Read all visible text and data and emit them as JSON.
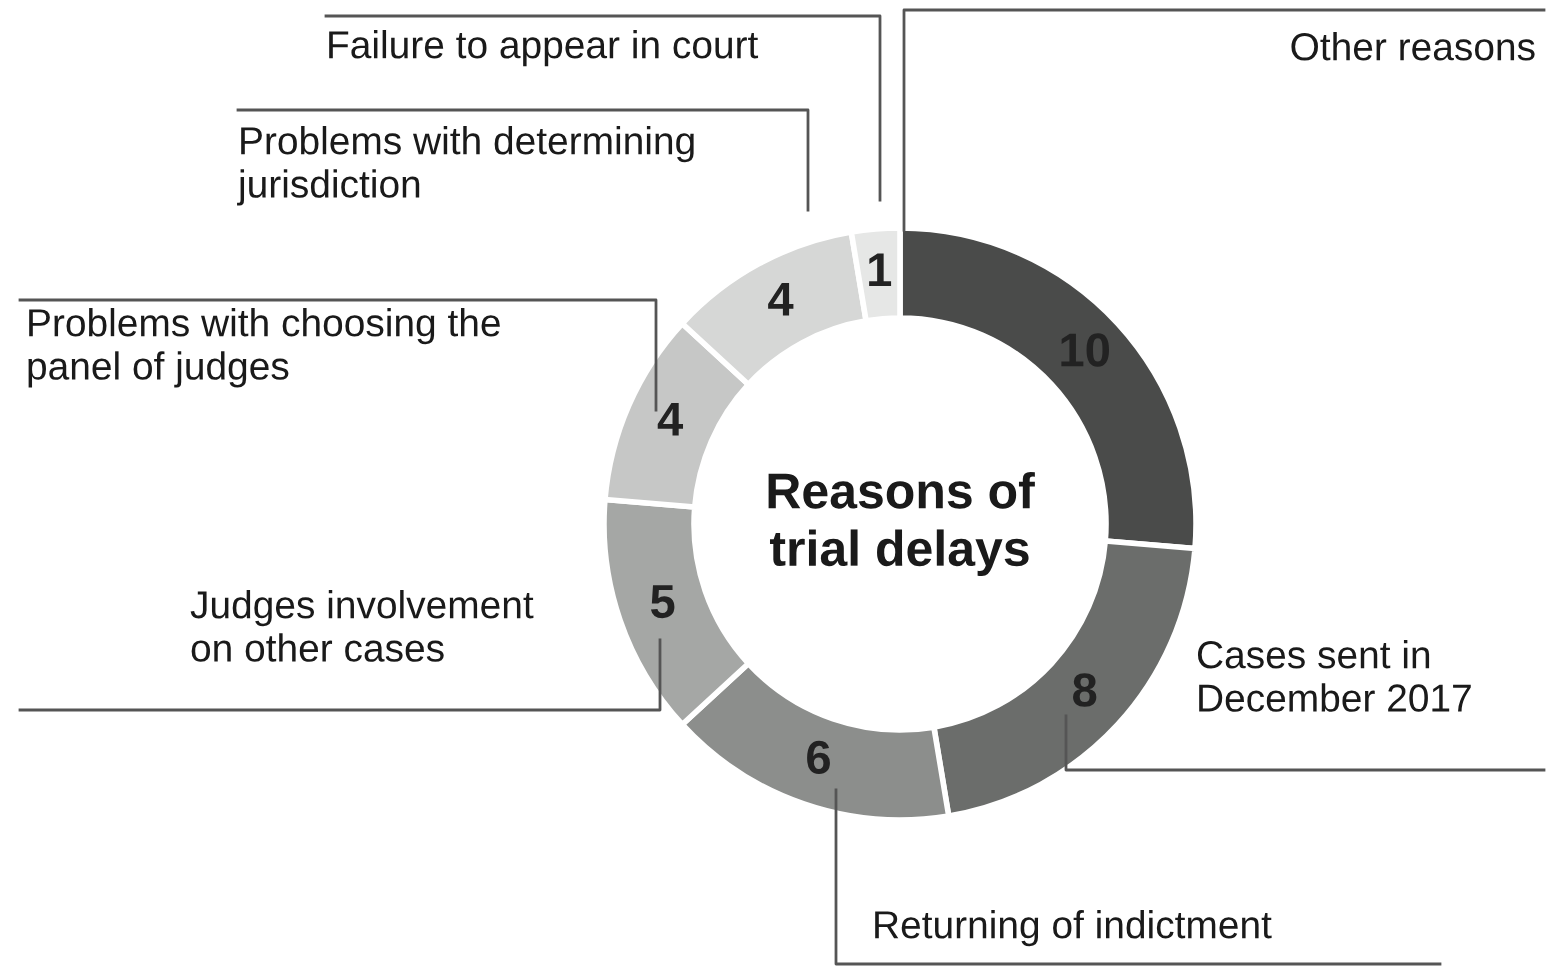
{
  "chart_data": {
    "type": "donut",
    "title": "Reasons of\ntrial delays",
    "categories": [
      "Other reasons",
      "Cases sent in\nDecember 2017",
      "Returning of indictment",
      "Judges involvement\non other cases",
      "Problems with choosing the\npanel of judges",
      "Problems with determining\njurisdiction",
      "Failure to appear in court"
    ],
    "values": [
      10,
      8,
      6,
      5,
      4,
      4,
      1
    ],
    "colors": [
      "#4a4b4a",
      "#6b6d6b",
      "#8c8e8c",
      "#a5a7a5",
      "#c6c7c6",
      "#d6d7d6",
      "#e6e7e6"
    ],
    "data_labels": true
  }
}
